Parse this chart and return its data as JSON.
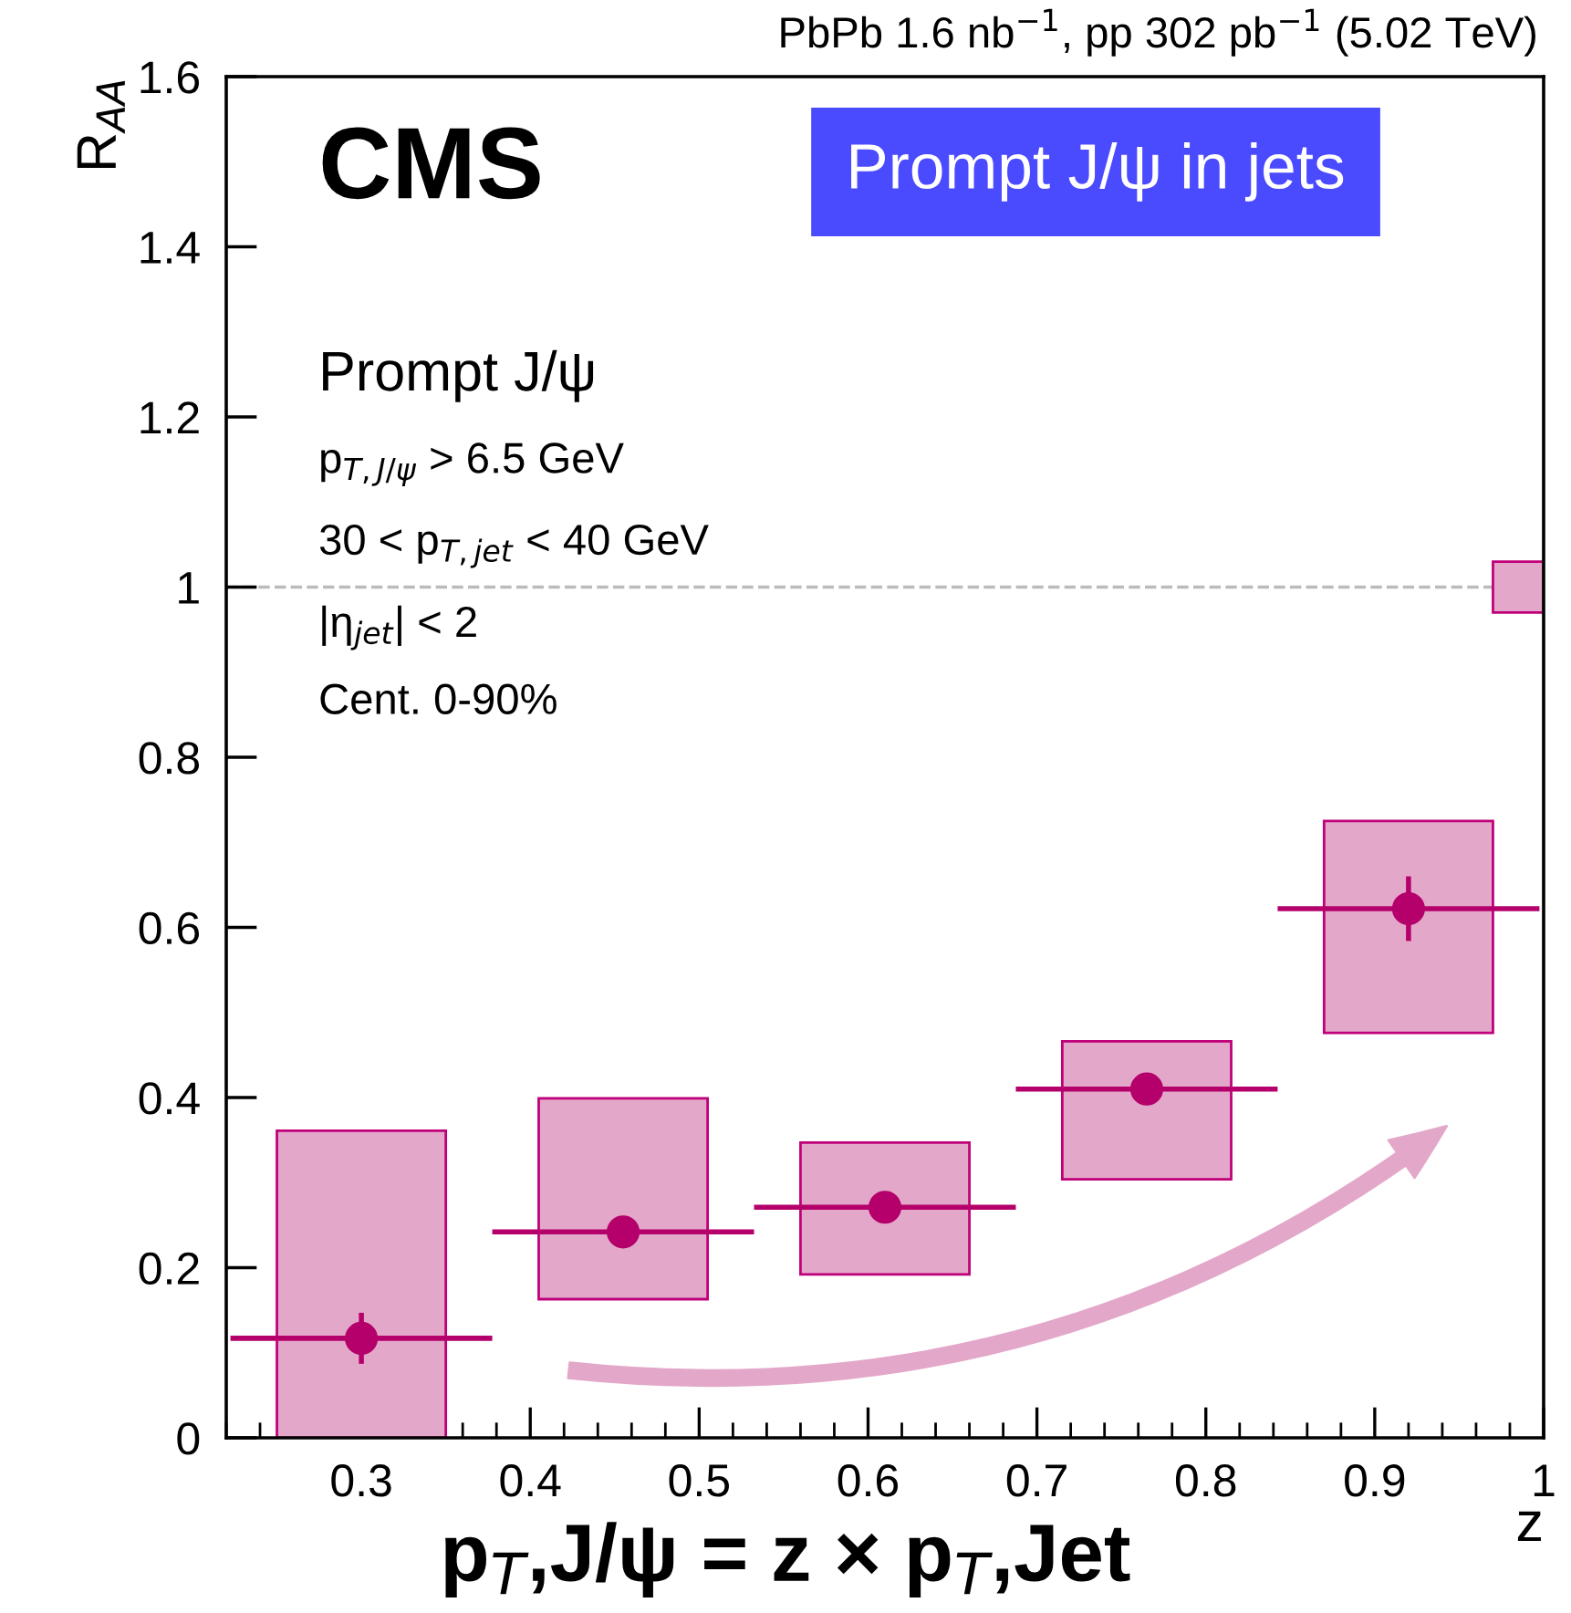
{
  "chart_data": {
    "type": "scatter",
    "title": "PbPb 1.6 nb$^{−1}$, pp 302 pb$^{−1}$ (5.02 TeV)",
    "xlabel": "z",
    "ylabel": "R$_{AA}$",
    "xlim": [
      0.22,
      1.0
    ],
    "xticks": [
      0.3,
      0.4,
      0.5,
      0.6,
      0.7,
      0.8,
      0.9,
      1
    ],
    "ylim": [
      0,
      1.6
    ],
    "yticks": [
      0,
      0.2,
      0.4,
      0.6,
      0.8,
      1,
      1.2,
      1.4,
      1.6
    ],
    "grid": false,
    "series": [
      {
        "type": "bar",
        "color": "#e3a8c9",
        "x": [
          0.3,
          0.455,
          0.61,
          0.765,
          0.92
        ],
        "base": [
          0,
          0.163,
          0.192,
          0.304,
          0.476
        ],
        "values": [
          0.361,
          0.236,
          0.155,
          0.162,
          0.249
        ]
      },
      {
        "type": "bar",
        "color": "#e3a8c9",
        "x": [
          0.985
        ],
        "base": [
          0.97
        ],
        "values": [
          0.06
        ]
      },
      {
        "color": "#b5006b",
        "marker": "circle",
        "x": [
          0.3,
          0.455,
          0.61,
          0.765,
          0.92
        ],
        "values": [
          0.117,
          0.242,
          0.271,
          0.41,
          0.622
        ],
        "errors": [
          0.03,
          null,
          null,
          null,
          0.038
        ],
        "xerrors": [
          0.0775,
          0.0775,
          0.0775,
          0.0775,
          0.0775
        ]
      }
    ],
    "ref_lines": [
      {
        "axis": "y",
        "value": 1,
        "color": "#bbbbbb",
        "line_style": "dashed"
      }
    ],
    "annotations": [
      "CMS",
      "Prompt J/ψ",
      "p$_{T,J/ψ}$ > 6.5 GeV",
      "30 < p$_{T,jet}$ < 40 GeV",
      "|η$_{jet}$| < 2",
      "Cent. 0-90%",
      "Prompt J/ψ in jets",
      "p$_{T}$,J/ψ = z × p$_{T}$,Jet"
    ]
  }
}
